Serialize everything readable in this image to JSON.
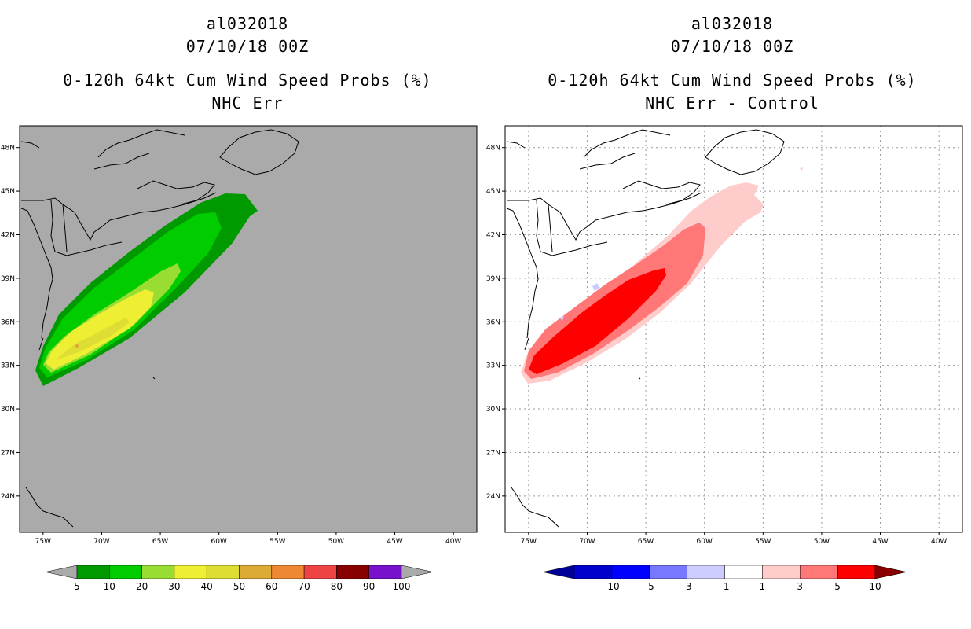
{
  "panels": [
    {
      "title_lines": [
        "al032018",
        "07/10/18 00Z",
        "0-120h 64kt Cum Wind Speed Probs (%)",
        "NHC Err"
      ]
    },
    {
      "title_lines": [
        "al032018",
        "07/10/18 00Z",
        "0-120h 64kt Cum Wind Speed Probs (%)",
        "NHC Err - Control"
      ]
    }
  ],
  "chart_data": [
    {
      "type": "heatmap",
      "title": "0-120h 64kt Cum Wind Speed Probs (%) NHC Err",
      "storm": "al032018",
      "valid_time": "07/10/18 00Z",
      "lon_range": [
        -77,
        -38
      ],
      "lat_range": [
        21.5,
        49.5
      ],
      "lat_ticks": [
        "24N",
        "27N",
        "30N",
        "33N",
        "36N",
        "39N",
        "42N",
        "45N",
        "48N"
      ],
      "lon_ticks": [
        "75W",
        "70W",
        "65W",
        "60W",
        "55W",
        "50W",
        "45W",
        "40W"
      ],
      "grid": false,
      "colorbar": {
        "labels": [
          "5",
          "10",
          "20",
          "30",
          "40",
          "50",
          "60",
          "70",
          "80",
          "90",
          "100"
        ],
        "colors": [
          "#009a00",
          "#00cc00",
          "#99dd33",
          "#eeee33",
          "#dddd33",
          "#ddaa33",
          "#ee8833",
          "#ee4444",
          "#880000",
          "#7711cc"
        ],
        "below_color": "#aaaaaa",
        "above_color": "#aaaaaa"
      }
    },
    {
      "type": "heatmap",
      "title": "0-120h 64kt Cum Wind Speed Probs (%) NHC Err - Control",
      "storm": "al032018",
      "valid_time": "07/10/18 00Z",
      "lon_range": [
        -77,
        -38
      ],
      "lat_range": [
        21.5,
        49.5
      ],
      "lat_ticks": [
        "24N",
        "27N",
        "30N",
        "33N",
        "36N",
        "39N",
        "42N",
        "45N",
        "48N"
      ],
      "lon_ticks": [
        "75W",
        "70W",
        "65W",
        "60W",
        "55W",
        "50W",
        "45W",
        "40W"
      ],
      "grid": true,
      "colorbar": {
        "labels": [
          "-10",
          "-5",
          "-3",
          "-1",
          "1",
          "3",
          "5",
          "10"
        ],
        "colors": [
          "#0000cc",
          "#0000ff",
          "#7777ff",
          "#ccccff",
          "#ffffff",
          "#ffcccc",
          "#ff7777",
          "#ff0000"
        ],
        "below_color": "#000099",
        "above_color": "#880000"
      }
    }
  ]
}
